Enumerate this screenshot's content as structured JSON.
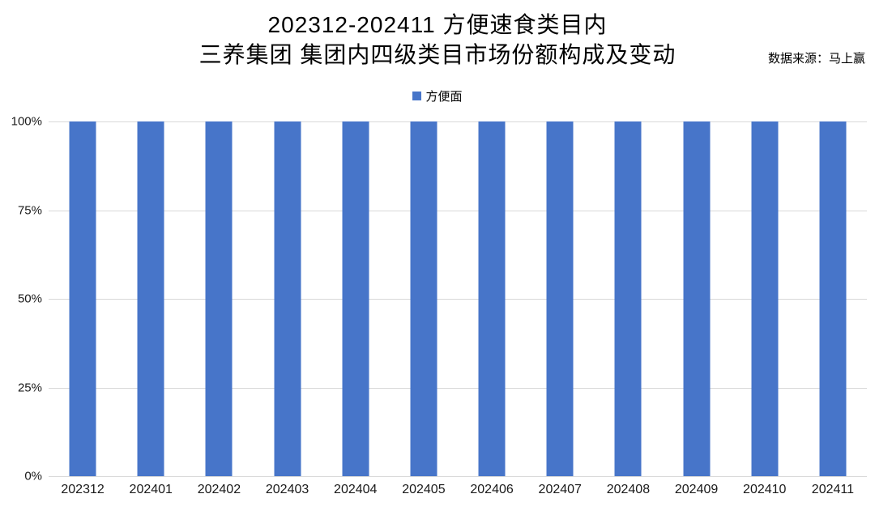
{
  "header": {
    "title_line1": "202312-202411 方便速食类目内",
    "title_line2": "三养集团 集团内四级类目市场份额构成及变动",
    "source_note": "数据来源：马上赢"
  },
  "legend": {
    "items": [
      {
        "label": "方便面",
        "swatch_icon": "square-icon",
        "color": "#4775C9"
      }
    ]
  },
  "chart_data": {
    "type": "bar",
    "title": "202312-202411 方便速食类目内 三养集团 集团内四级类目市场份额构成及变动",
    "source_note": "数据来源：马上赢",
    "categories": [
      "202312",
      "202401",
      "202402",
      "202403",
      "202404",
      "202405",
      "202406",
      "202407",
      "202408",
      "202409",
      "202410",
      "202411"
    ],
    "series": [
      {
        "name": "方便面",
        "values": [
          100,
          100,
          100,
          100,
          100,
          100,
          100,
          100,
          100,
          100,
          100,
          100
        ]
      }
    ],
    "unit": "%",
    "xlabel": "",
    "ylabel": "",
    "ylim": [
      0,
      100
    ],
    "yticks": [
      0,
      25,
      50,
      75,
      100
    ],
    "ytick_labels": [
      "0%",
      "25%",
      "50%",
      "75%",
      "100%"
    ],
    "grid": "horizontal",
    "legend_position": "top-center",
    "bar_color": "#4775C9",
    "gridline_color": "#D9D9D9"
  }
}
